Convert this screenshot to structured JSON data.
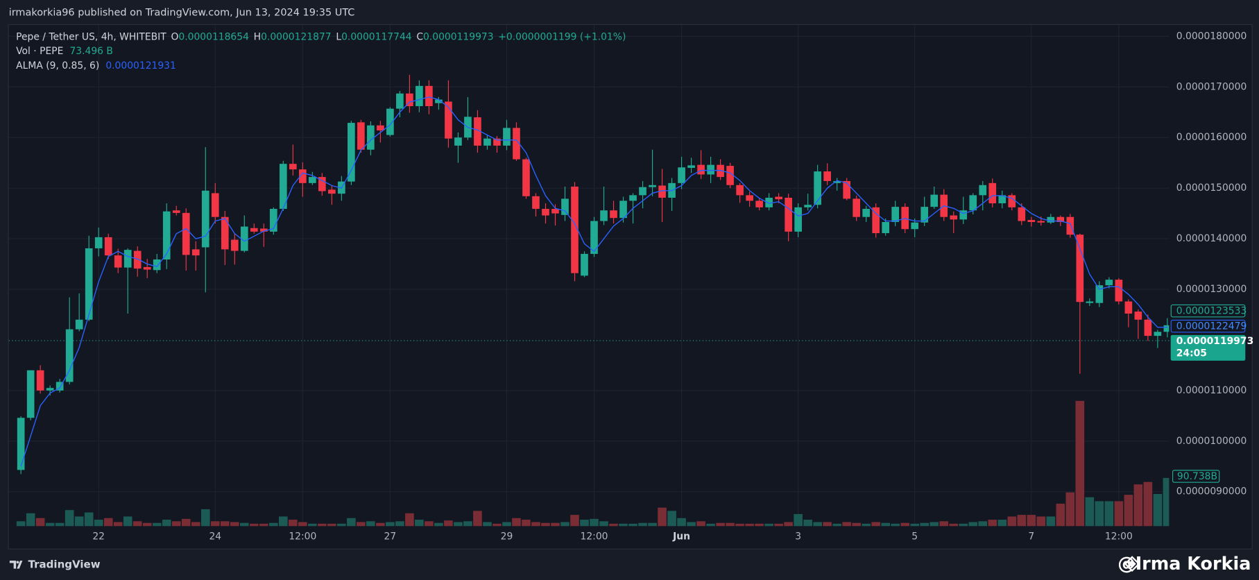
{
  "header": {
    "text": "irmakorkia96 published on TradingView.com, Jun 13, 2024 19:35 UTC"
  },
  "chart_data": {
    "type": "candlestick",
    "title": "Pepe / Tether US, 4h, WHITEBIT",
    "categories": [
      null,
      null,
      null,
      null,
      null,
      null,
      null,
      null,
      "22",
      null,
      null,
      null,
      null,
      null,
      null,
      null,
      null,
      null,
      null,
      null,
      "24",
      null,
      null,
      null,
      null,
      null,
      null,
      null,
      null,
      "12:00",
      null,
      null,
      null,
      null,
      null,
      null,
      null,
      null,
      "27",
      null,
      null,
      null,
      null,
      null,
      null,
      null,
      null,
      null,
      null,
      null,
      "29",
      null,
      null,
      null,
      null,
      null,
      null,
      null,
      null,
      "12:00",
      null,
      null,
      null,
      null,
      null,
      null,
      null,
      null,
      "Jun",
      null,
      null,
      null,
      null,
      null,
      null,
      null,
      null,
      null,
      null,
      null,
      "3",
      null,
      null,
      null,
      null,
      null,
      null,
      null,
      null,
      null,
      null,
      null,
      "5",
      null,
      null,
      null,
      null,
      null,
      null,
      null,
      null,
      null,
      null,
      null,
      "7",
      null,
      null,
      null,
      null,
      null,
      null,
      null,
      null,
      "12:00",
      null,
      null,
      null,
      null,
      null
    ],
    "open": [
      9.43e-06,
      1.046e-05,
      1.14e-05,
      1.1e-05,
      1.1e-05,
      1.117e-05,
      1.221e-05,
      1.24e-05,
      1.381e-05,
      1.403e-05,
      1.367e-05,
      1.343e-05,
      1.376e-05,
      1.344e-05,
      1.338e-05,
      1.359e-05,
      1.456e-05,
      1.451e-05,
      1.379e-05,
      1.383e-05,
      1.49e-05,
      1.443e-05,
      1.398e-05,
      1.376e-05,
      1.421e-05,
      1.42e-05,
      1.414e-05,
      1.459e-05,
      1.548e-05,
      1.537e-05,
      1.51e-05,
      1.522e-05,
      1.497e-05,
      1.489e-05,
      1.513e-05,
      1.63e-05,
      1.576e-05,
      1.624e-05,
      1.605e-05,
      1.657e-05,
      1.687e-05,
      1.662e-05,
      1.702e-05,
      1.668e-05,
      1.671e-05,
      1.584e-05,
      1.6e-05,
      1.64e-05,
      1.584e-05,
      1.598e-05,
      1.584e-05,
      1.619e-05,
      1.557e-05,
      1.484e-05,
      1.459e-05,
      1.459e-05,
      1.447e-05,
      1.503e-05,
      1.327e-05,
      1.37e-05,
      1.435e-05,
      1.456e-05,
      1.441e-05,
      1.475e-05,
      1.486e-05,
      1.502e-05,
      1.505e-05,
      1.481e-05,
      1.51e-05,
      1.54e-05,
      1.546e-05,
      1.527e-05,
      1.546e-05,
      1.544e-05,
      1.506e-05,
      1.486e-05,
      1.475e-05,
      1.462e-05,
      1.483e-05,
      1.481e-05,
      1.414e-05,
      1.462e-05,
      1.467e-05,
      1.533e-05,
      1.51e-05,
      1.514e-05,
      1.479e-05,
      1.443e-05,
      1.462e-05,
      1.411e-05,
      1.433e-05,
      1.463e-05,
      1.419e-05,
      1.432e-05,
      1.463e-05,
      1.487e-05,
      1.446e-05,
      1.438e-05,
      1.456e-05,
      1.486e-05,
      1.51e-05,
      1.47e-05,
      1.486e-05,
      1.462e-05,
      1.437e-05,
      1.435e-05,
      1.432e-05,
      1.443e-05,
      1.443e-05,
      1.408e-05,
      1.273e-05,
      1.273e-05,
      1.308e-05,
      1.319e-05,
      1.276e-05,
      1.256e-05,
      1.24e-05,
      1.208e-05,
      1.216e-05
    ],
    "high": [
      1.049e-05,
      1.14e-05,
      1.15e-05,
      1.11e-05,
      1.123e-05,
      1.284e-05,
      1.292e-05,
      1.406e-05,
      1.422e-05,
      1.41e-05,
      1.38e-05,
      1.381e-05,
      1.385e-05,
      1.36e-05,
      1.37e-05,
      1.47e-05,
      1.465e-05,
      1.46e-05,
      1.395e-05,
      1.581e-05,
      1.51e-05,
      1.455e-05,
      1.41e-05,
      1.446e-05,
      1.43e-05,
      1.43e-05,
      1.462e-05,
      1.554e-05,
      1.586e-05,
      1.551e-05,
      1.532e-05,
      1.53e-05,
      1.506e-05,
      1.524e-05,
      1.633e-05,
      1.635e-05,
      1.632e-05,
      1.633e-05,
      1.66e-05,
      1.692e-05,
      1.724e-05,
      1.713e-05,
      1.713e-05,
      1.68e-05,
      1.713e-05,
      1.61e-05,
      1.68e-05,
      1.654e-05,
      1.606e-05,
      1.603e-05,
      1.635e-05,
      1.63e-05,
      1.56e-05,
      1.49e-05,
      1.47e-05,
      1.468e-05,
      1.503e-05,
      1.512e-05,
      1.375e-05,
      1.443e-05,
      1.503e-05,
      1.475e-05,
      1.483e-05,
      1.49e-05,
      1.514e-05,
      1.576e-05,
      1.538e-05,
      1.52e-05,
      1.562e-05,
      1.56e-05,
      1.575e-05,
      1.562e-05,
      1.557e-05,
      1.55e-05,
      1.51e-05,
      1.493e-05,
      1.48e-05,
      1.49e-05,
      1.49e-05,
      1.489e-05,
      1.47e-05,
      1.489e-05,
      1.546e-05,
      1.549e-05,
      1.52e-05,
      1.52e-05,
      1.485e-05,
      1.465e-05,
      1.47e-05,
      1.44e-05,
      1.475e-05,
      1.47e-05,
      1.44e-05,
      1.483e-05,
      1.503e-05,
      1.498e-05,
      1.454e-05,
      1.483e-05,
      1.49e-05,
      1.514e-05,
      1.519e-05,
      1.495e-05,
      1.49e-05,
      1.47e-05,
      1.443e-05,
      1.444e-05,
      1.449e-05,
      1.446e-05,
      1.449e-05,
      1.41e-05,
      1.282e-05,
      1.316e-05,
      1.324e-05,
      1.322e-05,
      1.28e-05,
      1.26e-05,
      1.25e-05,
      1.22e-05,
      1.243e-05
    ],
    "low": [
      9.35e-06,
      1.041e-05,
      1.094e-05,
      1.09e-05,
      1.096e-05,
      1.112e-05,
      1.217e-05,
      1.237e-05,
      1.365e-05,
      1.36e-05,
      1.332e-05,
      1.252e-05,
      1.325e-05,
      1.322e-05,
      1.332e-05,
      1.34e-05,
      1.446e-05,
      1.337e-05,
      1.337e-05,
      1.294e-05,
      1.43e-05,
      1.348e-05,
      1.349e-05,
      1.373e-05,
      1.41e-05,
      1.384e-05,
      1.408e-05,
      1.455e-05,
      1.525e-05,
      1.483e-05,
      1.506e-05,
      1.485e-05,
      1.467e-05,
      1.475e-05,
      1.506e-05,
      1.57e-05,
      1.565e-05,
      1.59e-05,
      1.602e-05,
      1.64e-05,
      1.649e-05,
      1.65e-05,
      1.646e-05,
      1.655e-05,
      1.58e-05,
      1.55e-05,
      1.595e-05,
      1.57e-05,
      1.576e-05,
      1.57e-05,
      1.575e-05,
      1.554e-05,
      1.479e-05,
      1.444e-05,
      1.43e-05,
      1.426e-05,
      1.435e-05,
      1.316e-05,
      1.324e-05,
      1.364e-05,
      1.427e-05,
      1.43e-05,
      1.432e-05,
      1.43e-05,
      1.46e-05,
      1.484e-05,
      1.433e-05,
      1.455e-05,
      1.498e-05,
      1.53e-05,
      1.518e-05,
      1.51e-05,
      1.516e-05,
      1.5e-05,
      1.471e-05,
      1.463e-05,
      1.456e-05,
      1.456e-05,
      1.47e-05,
      1.395e-05,
      1.403e-05,
      1.456e-05,
      1.46e-05,
      1.506e-05,
      1.495e-05,
      1.476e-05,
      1.435e-05,
      1.433e-05,
      1.402e-05,
      1.406e-05,
      1.425e-05,
      1.411e-05,
      1.403e-05,
      1.425e-05,
      1.459e-05,
      1.435e-05,
      1.411e-05,
      1.429e-05,
      1.448e-05,
      1.456e-05,
      1.462e-05,
      1.46e-05,
      1.456e-05,
      1.427e-05,
      1.424e-05,
      1.426e-05,
      1.429e-05,
      1.425e-05,
      1.402e-05,
      1.133e-05,
      1.267e-05,
      1.265e-05,
      1.302e-05,
      1.27e-05,
      1.225e-05,
      1.202e-05,
      1.198e-05,
      1.184e-05,
      1.205e-05
    ],
    "close": [
      1.046e-05,
      1.14e-05,
      1.1e-05,
      1.105e-05,
      1.117e-05,
      1.221e-05,
      1.24e-05,
      1.381e-05,
      1.403e-05,
      1.367e-05,
      1.343e-05,
      1.378e-05,
      1.341e-05,
      1.339e-05,
      1.359e-05,
      1.454e-05,
      1.451e-05,
      1.368e-05,
      1.367e-05,
      1.495e-05,
      1.443e-05,
      1.379e-05,
      1.376e-05,
      1.424e-05,
      1.414e-05,
      1.414e-05,
      1.459e-05,
      1.548e-05,
      1.537e-05,
      1.51e-05,
      1.522e-05,
      1.494e-05,
      1.489e-05,
      1.513e-05,
      1.629e-05,
      1.576e-05,
      1.624e-05,
      1.614e-05,
      1.657e-05,
      1.687e-05,
      1.662e-05,
      1.702e-05,
      1.662e-05,
      1.675e-05,
      1.598e-05,
      1.6e-05,
      1.641e-05,
      1.584e-05,
      1.598e-05,
      1.584e-05,
      1.619e-05,
      1.557e-05,
      1.484e-05,
      1.459e-05,
      1.446e-05,
      1.45e-05,
      1.479e-05,
      1.332e-05,
      1.37e-05,
      1.435e-05,
      1.456e-05,
      1.441e-05,
      1.475e-05,
      1.486e-05,
      1.502e-05,
      1.506e-05,
      1.481e-05,
      1.51e-05,
      1.541e-05,
      1.545e-05,
      1.527e-05,
      1.546e-05,
      1.522e-05,
      1.506e-05,
      1.486e-05,
      1.475e-05,
      1.462e-05,
      1.481e-05,
      1.478e-05,
      1.414e-05,
      1.462e-05,
      1.467e-05,
      1.533e-05,
      1.514e-05,
      1.514e-05,
      1.479e-05,
      1.443e-05,
      1.459e-05,
      1.411e-05,
      1.433e-05,
      1.463e-05,
      1.419e-05,
      1.432e-05,
      1.463e-05,
      1.487e-05,
      1.443e-05,
      1.438e-05,
      1.456e-05,
      1.486e-05,
      1.506e-05,
      1.47e-05,
      1.486e-05,
      1.462e-05,
      1.435e-05,
      1.433e-05,
      1.432e-05,
      1.443e-05,
      1.433e-05,
      1.408e-05,
      1.275e-05,
      1.276e-05,
      1.308e-05,
      1.319e-05,
      1.276e-05,
      1.252e-05,
      1.24e-05,
      1.208e-05,
      1.216e-05,
      1.229e-05
    ],
    "up_color": "#22ab94",
    "down_color": "#f23645",
    "volume": {
      "name": "Vol · PEPE",
      "up_color": "#1c5b55",
      "down_color": "#7a2d35",
      "values": [
        9.1,
        24.2,
        15.1,
        6.0,
        6.0,
        30.2,
        18.1,
        25.7,
        12.1,
        15.1,
        7.6,
        18.1,
        9.1,
        6.0,
        6.0,
        12.1,
        9.1,
        13.6,
        7.6,
        31.8,
        9.1,
        9.1,
        7.6,
        6.0,
        4.5,
        4.5,
        6.0,
        18.1,
        12.1,
        7.6,
        4.5,
        4.5,
        4.5,
        4.5,
        15.1,
        7.6,
        9.1,
        6.0,
        7.6,
        9.1,
        24.2,
        12.1,
        9.1,
        6.0,
        10.6,
        7.6,
        9.1,
        28.7,
        7.6,
        4.5,
        7.6,
        15.1,
        12.1,
        7.6,
        6.0,
        6.0,
        7.6,
        21.2,
        12.1,
        13.6,
        9.1,
        4.5,
        4.5,
        4.5,
        6.0,
        6.0,
        34.8,
        28.7,
        15.1,
        7.6,
        9.1,
        4.5,
        6.0,
        6.0,
        4.5,
        4.5,
        4.5,
        4.5,
        4.5,
        7.6,
        22.7,
        12.1,
        7.6,
        7.6,
        4.5,
        7.6,
        6.0,
        4.5,
        7.6,
        6.0,
        4.5,
        6.0,
        4.5,
        6.0,
        7.6,
        9.1,
        4.5,
        4.5,
        7.6,
        9.1,
        12.1,
        12.1,
        18.1,
        21.2,
        21.2,
        18.1,
        18.1,
        42.3,
        63.5,
        235.9,
        54.4,
        46.9,
        46.9,
        46.9,
        59.0,
        78.6,
        83.2,
        60.5,
        90.738
      ]
    },
    "overlay": {
      "name": "ALMA (9, 0.85, 6)",
      "color": "#2962ff",
      "values": [
        9.5e-06,
        1.01e-05,
        1.07e-05,
        1.095e-05,
        1.105e-05,
        1.14e-05,
        1.185e-05,
        1.25e-05,
        1.315e-05,
        1.365e-05,
        1.375e-05,
        1.365e-05,
        1.36e-05,
        1.35e-05,
        1.345e-05,
        1.37e-05,
        1.41e-05,
        1.42e-05,
        1.4e-05,
        1.405e-05,
        1.435e-05,
        1.44e-05,
        1.41e-05,
        1.395e-05,
        1.405e-05,
        1.415e-05,
        1.42e-05,
        1.46e-05,
        1.505e-05,
        1.53e-05,
        1.525e-05,
        1.515e-05,
        1.505e-05,
        1.5e-05,
        1.535e-05,
        1.575e-05,
        1.595e-05,
        1.61e-05,
        1.625e-05,
        1.65e-05,
        1.67e-05,
        1.675e-05,
        1.68e-05,
        1.675e-05,
        1.66e-05,
        1.635e-05,
        1.62e-05,
        1.615e-05,
        1.605e-05,
        1.595e-05,
        1.595e-05,
        1.595e-05,
        1.57e-05,
        1.525e-05,
        1.485e-05,
        1.46e-05,
        1.455e-05,
        1.43e-05,
        1.39e-05,
        1.375e-05,
        1.4e-05,
        1.425e-05,
        1.44e-05,
        1.46e-05,
        1.475e-05,
        1.49e-05,
        1.495e-05,
        1.495e-05,
        1.505e-05,
        1.525e-05,
        1.535e-05,
        1.535e-05,
        1.535e-05,
        1.53e-05,
        1.515e-05,
        1.495e-05,
        1.48e-05,
        1.47e-05,
        1.473e-05,
        1.46e-05,
        1.445e-05,
        1.45e-05,
        1.475e-05,
        1.5e-05,
        1.515e-05,
        1.51e-05,
        1.49e-05,
        1.47e-05,
        1.45e-05,
        1.435e-05,
        1.435e-05,
        1.44e-05,
        1.435e-05,
        1.435e-05,
        1.45e-05,
        1.465e-05,
        1.46e-05,
        1.45e-05,
        1.455e-05,
        1.47e-05,
        1.485e-05,
        1.485e-05,
        1.48e-05,
        1.465e-05,
        1.45e-05,
        1.44e-05,
        1.435e-05,
        1.435e-05,
        1.43e-05,
        1.38e-05,
        1.33e-05,
        1.3e-05,
        1.305e-05,
        1.305e-05,
        1.29e-05,
        1.27e-05,
        1.245e-05,
        1.225e-05,
        1.225e-05
      ]
    },
    "ylim": [
      8.32e-06,
      1.824e-05
    ],
    "yticks": [
      {
        "value": 9e-06,
        "label": "0.0000090000"
      },
      {
        "value": 1e-05,
        "label": "0.0000100000"
      },
      {
        "value": 1.1e-05,
        "label": "0.0000110000"
      },
      {
        "value": 1.3e-05,
        "label": "0.0000130000"
      },
      {
        "value": 1.4e-05,
        "label": "0.0000140000"
      },
      {
        "value": 1.5e-05,
        "label": "0.0000150000"
      },
      {
        "value": 1.6e-05,
        "label": "0.0000160000"
      },
      {
        "value": 1.7e-05,
        "label": "0.0000170000"
      },
      {
        "value": 1.8e-05,
        "label": "0.0000180000"
      }
    ],
    "grid": true,
    "legend": {
      "open_label": "O",
      "open": "0.0000118654",
      "high_label": "H",
      "high": "0.0000121877",
      "low_label": "L",
      "low": "0.0000117744",
      "close_label": "C",
      "close": "0.0000119973",
      "change": "+0.0000001199 (+1.01%)",
      "volume": "73.496 B",
      "overlay": "0.0000121931"
    }
  },
  "price_labels": {
    "high_marker": "0.0000123533",
    "overlay": "0.0000122479",
    "last": "0.0000119973",
    "countdown": "24:05",
    "volume": "90.738B"
  },
  "footer": {
    "brand": "TradingView",
    "watermark": "@Irma Korkia"
  }
}
